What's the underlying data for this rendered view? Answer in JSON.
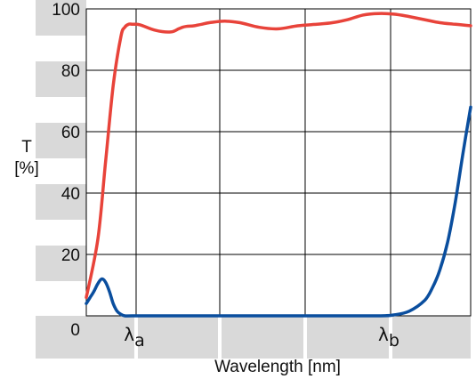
{
  "chart_data": {
    "type": "line",
    "title": "",
    "ylabel_symbol": "T",
    "ylabel_unit": "[%]",
    "xlabel": "Wavelength [nm]",
    "ylim": [
      0,
      100
    ],
    "yticks": [
      "0",
      "20",
      "40",
      "60",
      "80",
      "100"
    ],
    "xticks": [
      {
        "name": "lambda-a",
        "symbol": "λ",
        "sub": "a"
      },
      {
        "name": "lambda-b",
        "symbol": "λ",
        "sub": "b"
      }
    ],
    "grid": true,
    "colors": {
      "red_series": "#e8433a",
      "blue_series": "#0a4e9e",
      "band": "#d9d9d9",
      "grid": "#000000"
    },
    "series": [
      {
        "color_key": "red_series",
        "x": [
          0,
          3,
          5,
          7,
          9,
          10,
          11,
          12,
          14,
          18,
          22,
          24,
          25,
          26,
          28,
          30,
          32,
          36,
          40,
          45,
          50,
          55,
          60,
          64,
          68,
          72,
          76,
          80,
          84,
          88,
          92,
          96,
          100
        ],
        "y": [
          6,
          25,
          50,
          75,
          91,
          94,
          95,
          95,
          94.8,
          93,
          92.5,
          93.5,
          94,
          94.3,
          94.5,
          95,
          95.5,
          96,
          95.5,
          94,
          93.5,
          94.5,
          95,
          95.5,
          96.5,
          98,
          98.5,
          98.3,
          97.5,
          96.5,
          95.5,
          95,
          94.5
        ]
      },
      {
        "color_key": "blue_series",
        "x": [
          0,
          1,
          2,
          3,
          4,
          5,
          6,
          7,
          8,
          9,
          10,
          12,
          20,
          40,
          60,
          76,
          80,
          84,
          88,
          90,
          92,
          94,
          96,
          98,
          100
        ],
        "y": [
          4,
          6,
          8,
          10.5,
          12,
          11,
          8,
          4,
          1.5,
          0.5,
          0,
          0,
          0,
          0,
          0,
          0,
          0.3,
          1.5,
          5,
          9,
          15,
          24,
          37,
          53,
          68
        ]
      }
    ]
  }
}
